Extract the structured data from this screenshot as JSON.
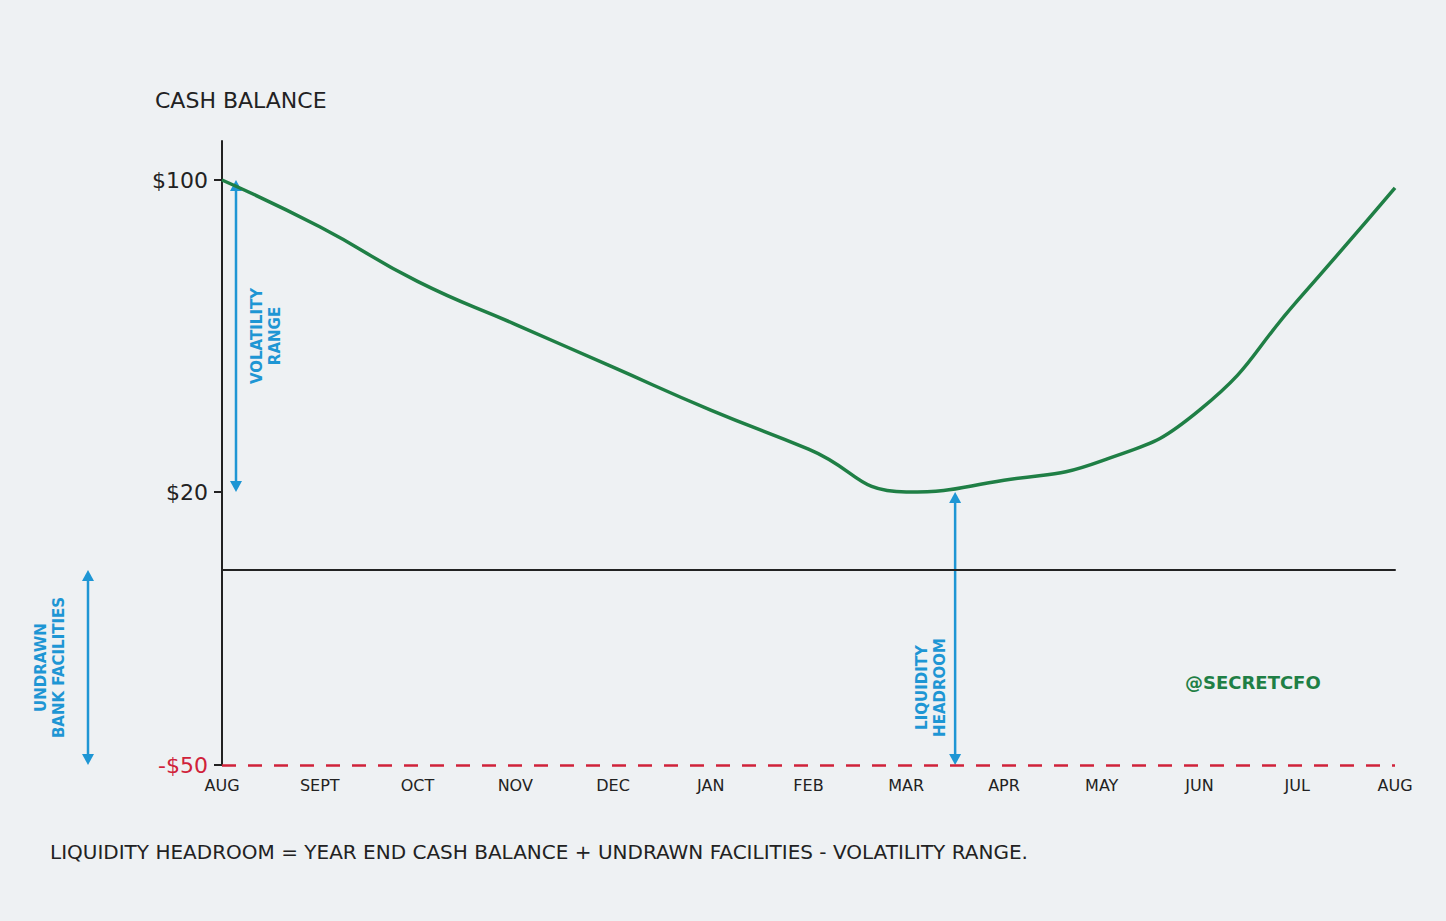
{
  "chart_data": {
    "type": "line",
    "title": "CASH BALANCE",
    "categories": [
      "AUG",
      "SEPT",
      "OCT",
      "NOV",
      "DEC",
      "JAN",
      "FEB",
      "MAR",
      "APR",
      "MAY",
      "JUN",
      "JUL",
      "AUG"
    ],
    "values": [
      100,
      88,
      74,
      63,
      52,
      41,
      31,
      20,
      23,
      28,
      41,
      69,
      98
    ],
    "color": "#1f7f45",
    "ylim": [
      -50,
      110
    ],
    "yticks": [
      {
        "value": -50,
        "label": "-$50"
      },
      {
        "value": 20,
        "label": "$20"
      },
      {
        "value": 100,
        "label": "$100"
      }
    ],
    "grid": false,
    "reference_line": {
      "value": -50,
      "color": "#d0223a",
      "line_style": "dashed"
    },
    "annotations": [
      {
        "text": "VOLATILITY RANGE",
        "from": 100,
        "to": 20
      },
      {
        "text": "LIQUIDITY HEADROOM",
        "from": 20,
        "to": -50
      },
      {
        "text": "UNDRAWN BANK FACILITIES",
        "from": 0,
        "to": -50
      },
      {
        "text": "@SECRETCFO"
      }
    ],
    "footnote": "LIQUIDITY HEADROOM = YEAR END CASH BALANCE + UNDRAWN FACILITIES - VOLATILITY RANGE."
  }
}
